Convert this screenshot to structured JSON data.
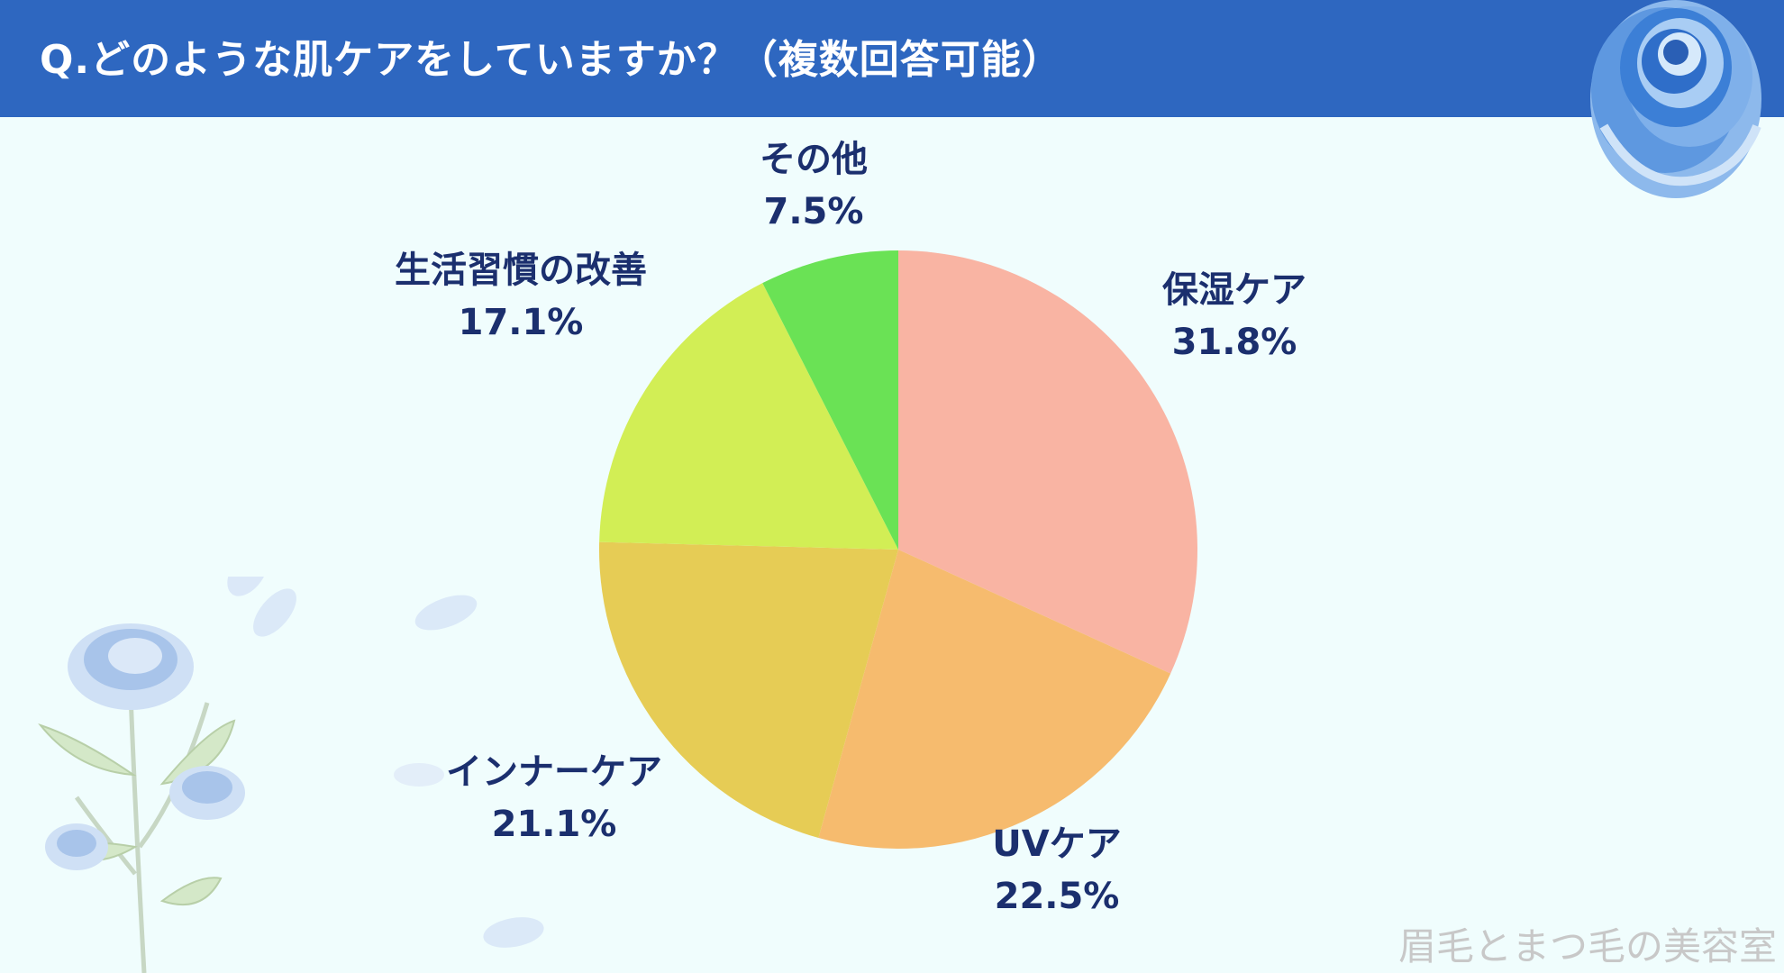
{
  "header": {
    "title": "Q.どのような肌ケアをしていますか？（複数回答可能）"
  },
  "chart_data": {
    "type": "pie",
    "title": "Q.どのような肌ケアをしていますか？（複数回答可能）",
    "categories": [
      "保湿ケア",
      "UVケア",
      "インナーケア",
      "生活習慣の改善",
      "その他"
    ],
    "values": [
      31.8,
      22.5,
      21.1,
      17.1,
      7.5
    ],
    "value_labels": [
      "31.8%",
      "22.5%",
      "21.1%",
      "17.1%",
      "7.5%"
    ],
    "colors": [
      "#f9b4a3",
      "#f6bb6e",
      "#e6cc55",
      "#d2ee55",
      "#6ae255"
    ],
    "start": "12 o'clock",
    "direction": "clockwise",
    "legend": "none"
  },
  "watermark": "眉毛とまつ毛の美容室",
  "decor": {
    "corner_icon": "blue-rose-icon",
    "bottom_left_icon": "blue-rose-bouquet-icon"
  }
}
